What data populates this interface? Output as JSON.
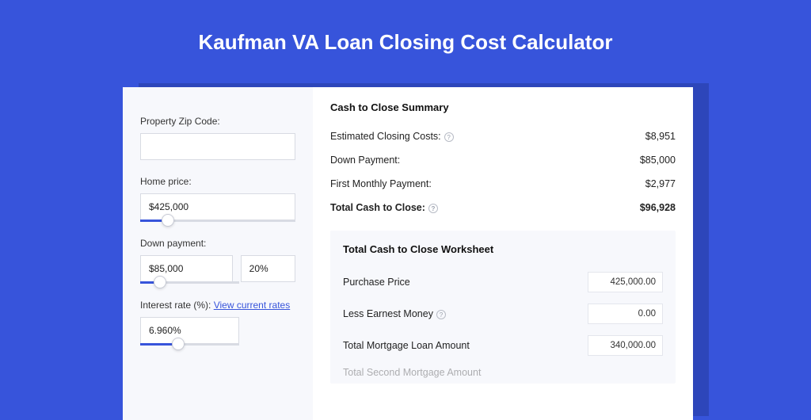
{
  "title": "Kaufman VA Loan Closing Cost Calculator",
  "colors": {
    "page_bg": "#3754db",
    "shadow": "#2d46ba",
    "card_bg": "#ffffff",
    "panel_bg": "#f7f8fc",
    "border": "#d8dbe3",
    "link": "#3754db"
  },
  "sidebar": {
    "zip": {
      "label": "Property Zip Code:",
      "value": ""
    },
    "home_price": {
      "label": "Home price:",
      "value": "$425,000",
      "slider_pct": 18
    },
    "down_payment": {
      "label": "Down payment:",
      "value": "$85,000",
      "pct_value": "20%",
      "slider_pct": 20
    },
    "interest_rate": {
      "label": "Interest rate (%):",
      "link_text": "View current rates",
      "value": "6.960%",
      "slider_pct": 38
    }
  },
  "summary": {
    "title": "Cash to Close Summary",
    "rows": [
      {
        "label": "Estimated Closing Costs:",
        "help": true,
        "value": "$8,951",
        "bold": false
      },
      {
        "label": "Down Payment:",
        "help": false,
        "value": "$85,000",
        "bold": false
      },
      {
        "label": "First Monthly Payment:",
        "help": false,
        "value": "$2,977",
        "bold": false
      },
      {
        "label": "Total Cash to Close:",
        "help": true,
        "value": "$96,928",
        "bold": true
      }
    ]
  },
  "worksheet": {
    "title": "Total Cash to Close Worksheet",
    "rows": [
      {
        "label": "Purchase Price",
        "help": false,
        "value": "425,000.00"
      },
      {
        "label": "Less Earnest Money",
        "help": true,
        "value": "0.00"
      },
      {
        "label": "Total Mortgage Loan Amount",
        "help": false,
        "value": "340,000.00"
      }
    ],
    "cutoff_label": "Total Second Mortgage Amount"
  }
}
